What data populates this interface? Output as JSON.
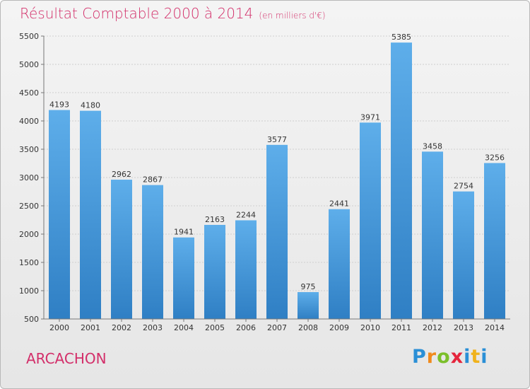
{
  "title": "Résultat Comptable 2000 à 2014",
  "subtitle": "(en milliers d'€)",
  "city": "ARCACHON",
  "logo": {
    "letters": [
      "P",
      "r",
      "o",
      "x",
      "i",
      "t",
      "i"
    ],
    "colors": [
      "#2a8fd6",
      "#f08a1c",
      "#7bbf2a",
      "#e5253c",
      "#2a8fd6",
      "#f0b21c",
      "#2a8fd6"
    ]
  },
  "colors": {
    "accent": "#d32f6a",
    "bar_top": "#5eaeea",
    "bar_bottom": "#2f7fc4"
  },
  "chart_data": {
    "type": "bar",
    "title": "Résultat Comptable 2000 à 2014",
    "categories": [
      "2000",
      "2001",
      "2002",
      "2003",
      "2004",
      "2005",
      "2006",
      "2007",
      "2008",
      "2009",
      "2010",
      "2011",
      "2012",
      "2013",
      "2014"
    ],
    "values": [
      4193,
      4180,
      2962,
      2867,
      1941,
      2163,
      2244,
      3577,
      975,
      2441,
      3971,
      5385,
      3458,
      2754,
      3256
    ],
    "ylim": [
      500,
      5500
    ],
    "yticks": [
      500,
      1000,
      1500,
      2000,
      2500,
      3000,
      3500,
      4000,
      4500,
      5000,
      5500
    ],
    "grid": true,
    "legend": "none"
  }
}
